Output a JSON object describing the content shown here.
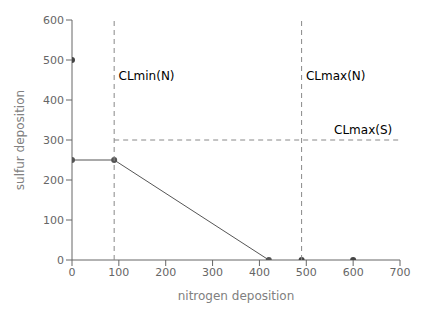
{
  "chart_data": {
    "type": "line",
    "xlabel": "nitrogen deposition",
    "ylabel": "sulfur deposition",
    "xlim": [
      0,
      700
    ],
    "ylim": [
      0,
      600
    ],
    "xticks": [
      0,
      100,
      200,
      300,
      400,
      500,
      600,
      700
    ],
    "yticks": [
      0,
      100,
      200,
      300,
      400,
      500,
      600
    ],
    "grid": false,
    "series": [
      {
        "type": "line",
        "marker": "circle",
        "line_style": "solid",
        "color": "#555555",
        "x": [
          0,
          90,
          420
        ],
        "values": [
          250,
          250,
          0
        ]
      },
      {
        "type": "scatter",
        "marker": "circle",
        "color": "#444444",
        "x": [
          0,
          490,
          600
        ],
        "values": [
          500,
          0,
          0
        ]
      },
      {
        "type": "line",
        "marker": "none",
        "line_style": "dashed",
        "color": "#888888",
        "x": [
          90,
          90
        ],
        "values": [
          0,
          600
        ]
      },
      {
        "type": "line",
        "marker": "none",
        "line_style": "dashed",
        "color": "#888888",
        "x": [
          490,
          490
        ],
        "values": [
          0,
          600
        ]
      },
      {
        "type": "line",
        "marker": "none",
        "line_style": "dashed",
        "color": "#888888",
        "x": [
          90,
          700
        ],
        "values": [
          300,
          300
        ]
      }
    ],
    "annotations": [
      {
        "text": "CLmin(N)",
        "x": 95,
        "y": 460
      },
      {
        "text": "CLmax(N)",
        "x": 495,
        "y": 460
      },
      {
        "text": "CLmax(S)",
        "x": 555,
        "y": 325
      }
    ]
  }
}
